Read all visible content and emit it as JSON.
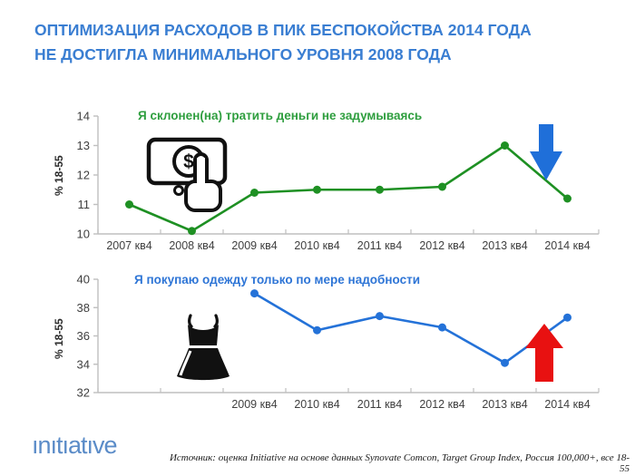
{
  "title": {
    "line1": "ОПТИМИЗАЦИЯ РАСХОДОВ В ПИК БЕСПОКОЙСТВА 2014 ГОДА",
    "line2": "НЕ ДОСТИГЛА МИНИМАЛЬНОГО УРОВНЯ 2008 ГОДА"
  },
  "colors": {
    "title_blue": "#3a7ed2",
    "green_line": "#1e9023",
    "green_text": "#2e9e3e",
    "blue_line": "#2472d8",
    "blue_text": "#2e75d6",
    "down_arrow": "#1f6fd9",
    "up_arrow": "#e81111",
    "axis": "#bfbfbf",
    "logo_blue": "#5b8cc8",
    "icon_black": "#111111"
  },
  "chart_data": [
    {
      "type": "line",
      "title": "Я склонен(на) тратить деньги не задумываясь",
      "ylabel": "% 18-55",
      "categories": [
        "2007 кв4",
        "2008 кв4",
        "2009 кв4",
        "2010 кв4",
        "2011 кв4",
        "2012 кв4",
        "2013 кв4",
        "2014 кв4"
      ],
      "values": [
        11.0,
        10.1,
        11.4,
        11.5,
        11.5,
        11.6,
        13.0,
        11.2
      ],
      "ylim": [
        10,
        14
      ],
      "ytick_step": 1,
      "line_color": "#1e9023",
      "grid": false,
      "icon": "pay-button-hand-icon",
      "trend_arrow": {
        "direction": "down",
        "color": "#1f6fd9"
      }
    },
    {
      "type": "line",
      "title": "Я покупаю  одежду только по мере надобности",
      "ylabel": "% 18-55",
      "categories": [
        "2009 кв4",
        "2010 кв4",
        "2011 кв4",
        "2012 кв4",
        "2013 кв4",
        "2014 кв4"
      ],
      "values": [
        39.0,
        36.4,
        37.4,
        36.6,
        34.1,
        37.3
      ],
      "ylim": [
        32,
        40
      ],
      "ytick_step": 2,
      "line_color": "#2472d8",
      "grid": false,
      "x_offset_slots": 2,
      "total_slots": 8,
      "icon": "black-dress-icon",
      "trend_arrow": {
        "direction": "up",
        "color": "#e81111"
      }
    }
  ],
  "footer": {
    "logo": "ınıtıatıve",
    "source": "Источник: оценка Initiative на основе данных Synovate Comcon, Target Group Index, Россия 100,000+, все 18-55"
  }
}
